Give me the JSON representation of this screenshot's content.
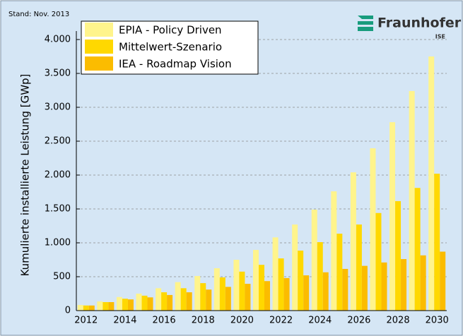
{
  "chart_data": {
    "type": "bar",
    "note": "Stand: Nov. 2013",
    "logo": "Fraunhofer",
    "logo_sub": "ISE",
    "y_label": "Kumulierte installierte Leistung [GWp]",
    "categories": [
      "2012",
      null,
      "2014",
      null,
      "2016",
      null,
      "2018",
      null,
      "2020",
      null,
      "2022",
      null,
      "2024",
      null,
      "2026",
      null,
      "2028",
      null,
      "2030"
    ],
    "series": [
      {
        "name": "EPIA - Policy Driven",
        "color": "#fff48c",
        "values": [
          83,
          135,
          200,
          250,
          330,
          420,
          510,
          625,
          750,
          895,
          1080,
          1270,
          1490,
          1760,
          2040,
          2395,
          2780,
          3240,
          3750
        ]
      },
      {
        "name": "Mittelwert-Szenario",
        "color": "#ffd800",
        "values": [
          75,
          125,
          175,
          220,
          270,
          330,
          405,
          490,
          575,
          675,
          770,
          885,
          1010,
          1135,
          1270,
          1440,
          1615,
          1810,
          2020
        ]
      },
      {
        "name": "IEA - Roadmap Vision",
        "color": "#fbbc00",
        "values": [
          75,
          125,
          165,
          195,
          230,
          270,
          310,
          350,
          395,
          435,
          480,
          520,
          565,
          615,
          660,
          710,
          760,
          815,
          870
        ]
      }
    ],
    "ylim": [
      0,
      4000
    ],
    "yticks": [
      0,
      500,
      {
        "value": 1000,
        "label": "1.000"
      },
      {
        "value": 1500,
        "label": "1.500"
      },
      {
        "value": 2000,
        "label": "2.000"
      },
      {
        "value": 2500,
        "label": "2.500"
      },
      {
        "value": 3000,
        "label": "3.000"
      },
      {
        "value": 3500,
        "label": "3.500"
      },
      {
        "value": 4000,
        "label": "4.000"
      }
    ],
    "grid": true,
    "legend": "upper left"
  }
}
